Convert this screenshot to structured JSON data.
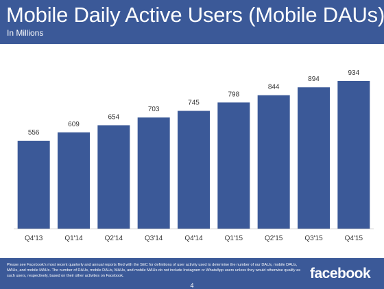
{
  "header": {
    "title": "Mobile Daily Active Users (Mobile DAUs)",
    "subtitle": "In Millions"
  },
  "footer": {
    "footnote": "Please see Facebook's most recent quarterly and annual reports filed with the SEC for definitions of user activity used to determine the number of our DAUs, mobile DAUs, MAUs, and mobile MAUs. The number of DAUs, mobile DAUs, MAUs, and mobile MAUs do not include Instagram or WhatsApp users unless they would otherwise qualify as such users, respectively, based on their other activities on Facebook.",
    "logo_text": "facebook",
    "page_number": "4"
  },
  "colors": {
    "brand": "#3b5998",
    "bar": "#3b5998",
    "text": "#333333"
  },
  "chart_data": {
    "type": "bar",
    "categories": [
      "Q4'13",
      "Q1'14",
      "Q2'14",
      "Q3'14",
      "Q4'14",
      "Q1'15",
      "Q2'15",
      "Q3'15",
      "Q4'15"
    ],
    "values": [
      556,
      609,
      654,
      703,
      745,
      798,
      844,
      894,
      934
    ],
    "title": "Mobile Daily Active Users (Mobile DAUs)",
    "subtitle": "In Millions",
    "ylim": [
      0,
      934
    ],
    "grid": false,
    "legend": "none",
    "data_labels": true
  }
}
